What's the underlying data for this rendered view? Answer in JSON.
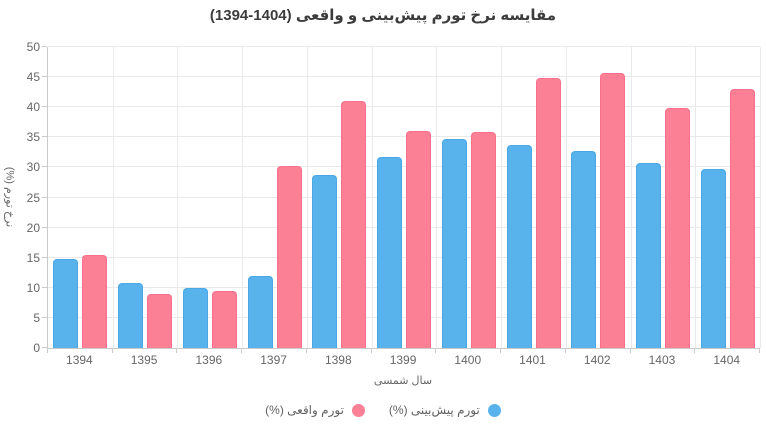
{
  "colors": {
    "predicted_fill": "#58b2ec",
    "predicted_border": "#49a7e6",
    "actual_fill": "#fb8095",
    "actual_border": "#fa6f8d",
    "gridline": "#e9e9e9",
    "axis_line": "#cbcbcb",
    "tick_text": "#666666",
    "title_text": "#3c3c3c"
  },
  "chart_data": {
    "type": "bar",
    "title": "مقایسه نرخ تورم پیش‌بینی و واقعی (1404-1394)",
    "categories": [
      "1394",
      "1395",
      "1396",
      "1397",
      "1398",
      "1399",
      "1400",
      "1401",
      "1402",
      "1403",
      "1404"
    ],
    "series": [
      {
        "name": "تورم پیش‌بینی (%)",
        "color_key": "predicted",
        "values": [
          14.8,
          10.8,
          9.9,
          11.9,
          28.7,
          31.8,
          34.7,
          33.7,
          32.7,
          30.8,
          29.8
        ]
      },
      {
        "name": "تورم واقعی (%)",
        "color_key": "actual",
        "values": [
          15.4,
          8.9,
          9.5,
          30.2,
          41.0,
          36.1,
          35.8,
          44.8,
          45.7,
          39.8,
          43.1
        ]
      }
    ],
    "xlabel": "سال شمسی",
    "ylabel": "نرخ تورم (%)",
    "ylim": [
      0,
      50
    ],
    "yticks": [
      0,
      5,
      10,
      15,
      20,
      25,
      30,
      35,
      40,
      45,
      50
    ],
    "grid": "both",
    "legend_position": "bottom",
    "text_direction": "rtl"
  }
}
